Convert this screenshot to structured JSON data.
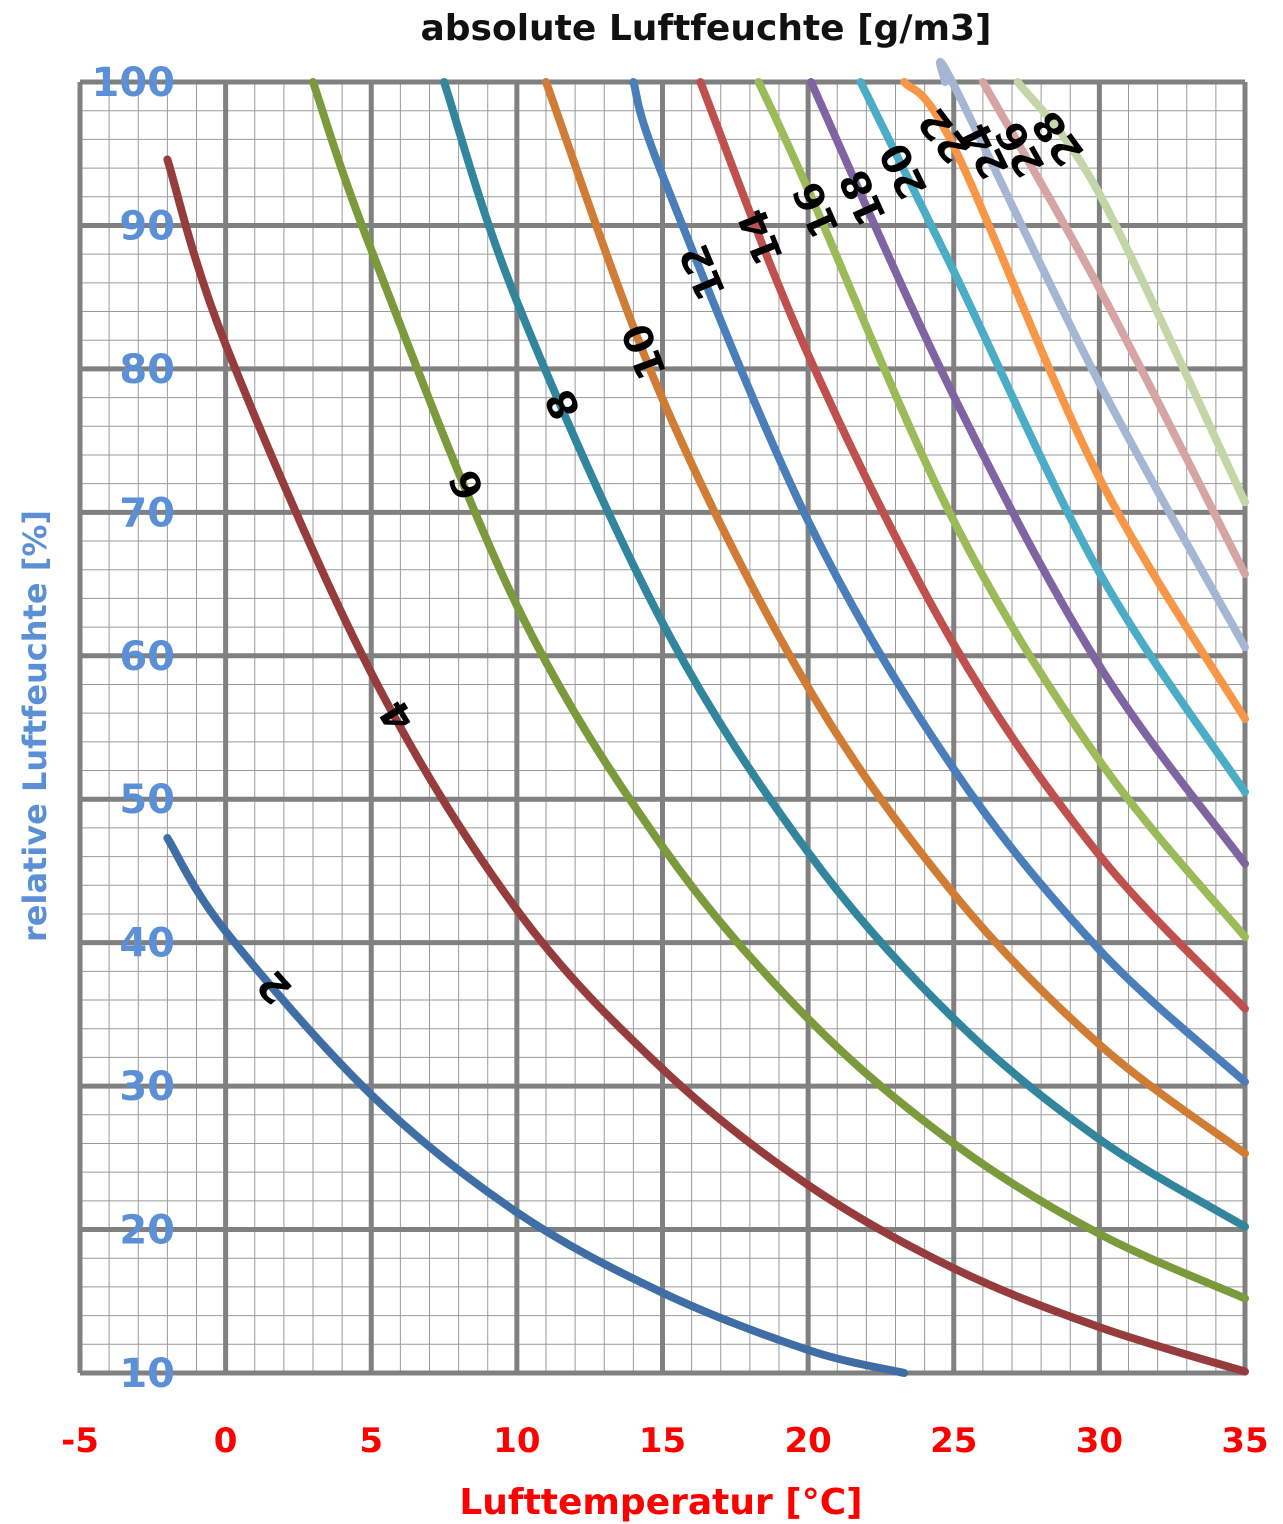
{
  "chart_data": {
    "type": "line",
    "title": "absolute Luftfeuchte [g/m3]",
    "xlabel": "Lufttemperatur [°C]",
    "ylabel": "relative Luftfeuchte  [%]",
    "xlim": [
      -5,
      35
    ],
    "ylim": [
      10,
      100
    ],
    "x_ticks": [
      "-5",
      "0",
      "5",
      "10",
      "15",
      "20",
      "25",
      "30",
      "35"
    ],
    "y_ticks": [
      "10",
      "20",
      "30",
      "40",
      "50",
      "60",
      "70",
      "80",
      "90",
      "100"
    ],
    "grid": true,
    "colors": {
      "xaxis_text": "#ff0000",
      "yaxis_text": "#5b8fd6",
      "grid_major": "#808080",
      "grid_minor": "#9a9a9a"
    },
    "series": [
      {
        "name": "2",
        "color": "#3f6ea7",
        "x": [
          -2,
          0,
          5,
          10,
          15,
          20,
          23.3
        ],
        "y": [
          47.3,
          40.8,
          29.4,
          21.2,
          15.6,
          11.6,
          10.0
        ]
      },
      {
        "name": "4",
        "color": "#963c3c",
        "x": [
          -2,
          0,
          5,
          10,
          15,
          20,
          25,
          30,
          35
        ],
        "y": [
          94.6,
          81.7,
          58.8,
          42.3,
          31.2,
          23.1,
          17.3,
          13.2,
          10.1
        ]
      },
      {
        "name": "6",
        "color": "#7a9a3c",
        "x": [
          3,
          5,
          10,
          15,
          20,
          25,
          30,
          35
        ],
        "y": [
          100,
          88.3,
          63.5,
          46.7,
          34.7,
          26.0,
          19.7,
          15.2
        ]
      },
      {
        "name": "8",
        "color": "#31859c",
        "x": [
          7.5,
          10,
          15,
          20,
          25,
          30,
          35
        ],
        "y": [
          100,
          84.7,
          62.3,
          46.3,
          34.7,
          26.3,
          20.2
        ]
      },
      {
        "name": "10",
        "color": "#d07c34",
        "x": [
          11,
          15,
          20,
          25,
          30,
          35
        ],
        "y": [
          100,
          77.9,
          57.8,
          43.4,
          32.9,
          25.3
        ]
      },
      {
        "name": "12",
        "color": "#4a7ebb",
        "x": [
          14,
          15,
          20,
          25,
          30,
          35
        ],
        "y": [
          100,
          93.5,
          69.4,
          52.1,
          39.5,
          30.3
        ]
      },
      {
        "name": "14",
        "color": "#c0504d",
        "x": [
          16.3,
          20,
          25,
          30,
          35
        ],
        "y": [
          100,
          81.0,
          60.8,
          46.1,
          35.4
        ]
      },
      {
        "name": "16",
        "color": "#9bbb59",
        "x": [
          18.3,
          20,
          25,
          30,
          35
        ],
        "y": [
          100,
          92.5,
          69.4,
          52.7,
          40.4
        ]
      },
      {
        "name": "18",
        "color": "#8064a2",
        "x": [
          20.1,
          25,
          30,
          35
        ],
        "y": [
          100,
          78.1,
          59.3,
          45.5
        ]
      },
      {
        "name": "20",
        "color": "#4bacc6",
        "x": [
          21.8,
          25,
          30,
          35
        ],
        "y": [
          100,
          86.8,
          65.8,
          50.5
        ]
      },
      {
        "name": "22",
        "color": "#f79646",
        "x": [
          23.3,
          25,
          30,
          35
        ],
        "y": [
          100,
          95.5,
          72.4,
          55.6
        ]
      },
      {
        "name": "24",
        "color": "#a5b6d4",
        "x": [
          24.7,
          25,
          30,
          35
        ],
        "y": [
          100,
          99.8,
          79.0,
          60.6
        ]
      },
      {
        "name": "26",
        "color": "#d6a5a3",
        "x": [
          26.0,
          30,
          35
        ],
        "y": [
          100,
          85.6,
          65.7
        ]
      },
      {
        "name": "28",
        "color": "#c4d6a7",
        "x": [
          27.2,
          30,
          35
        ],
        "y": [
          100,
          92.2,
          70.7
        ]
      }
    ]
  }
}
